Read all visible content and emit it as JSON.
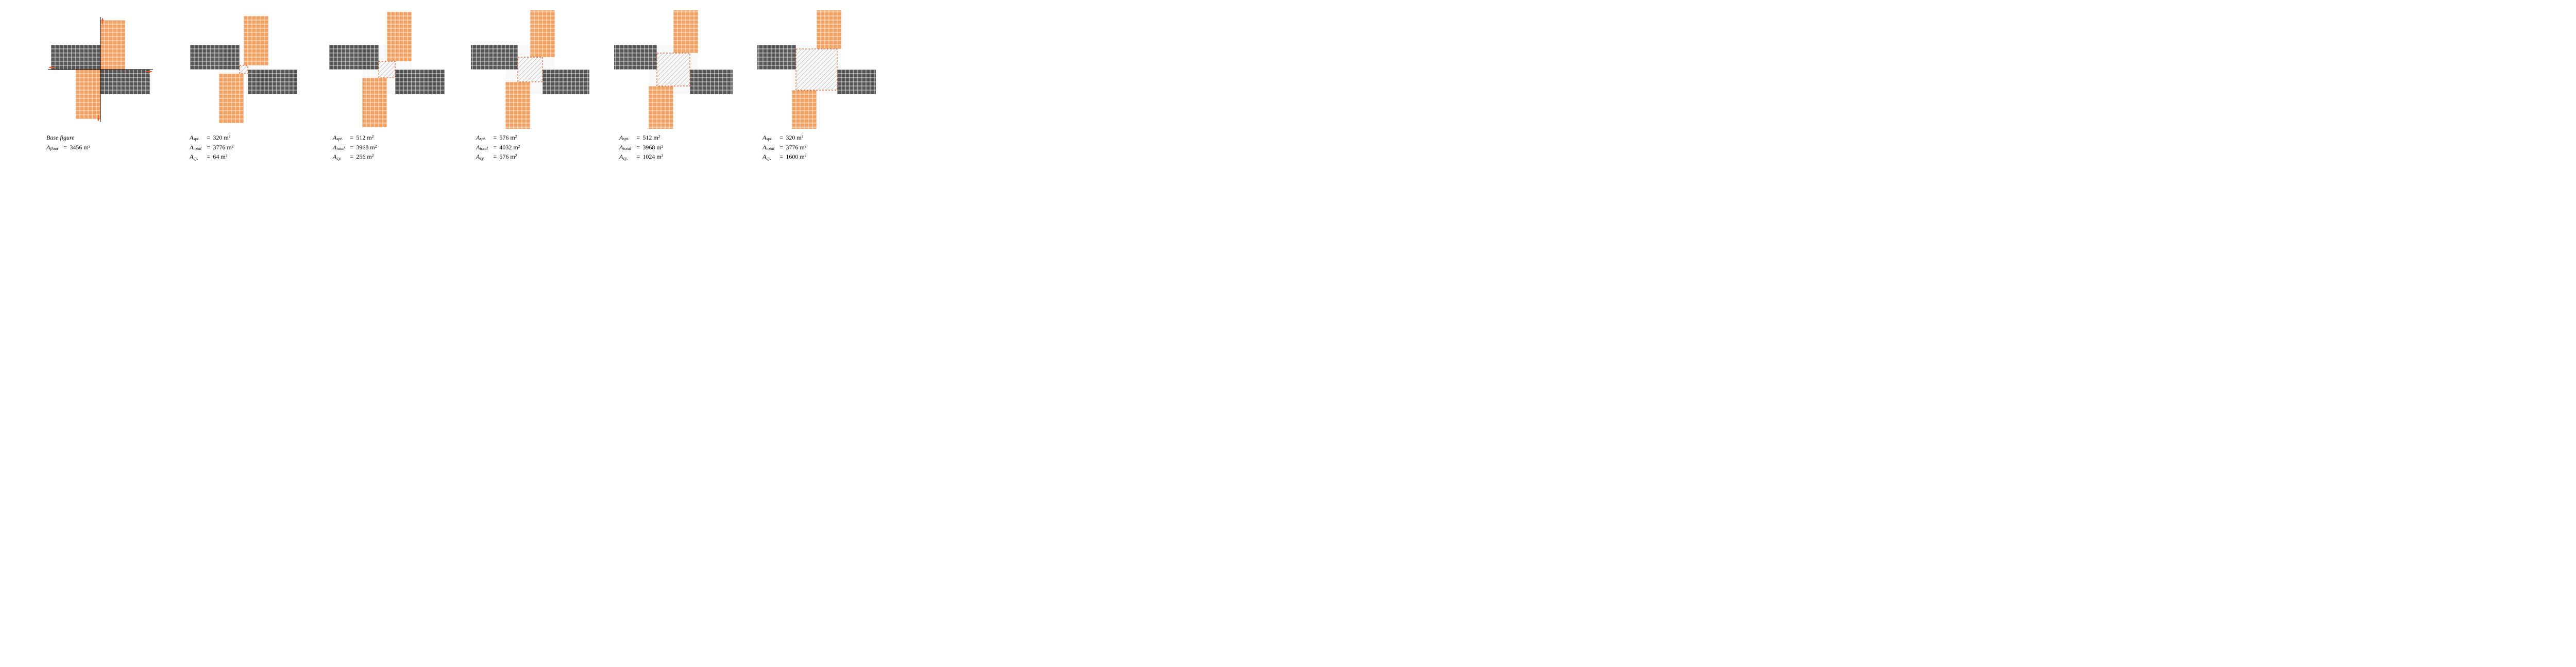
{
  "cell_size": 8,
  "colors": {
    "orange_fill": "#f4a261",
    "orange_stroke": "#ffffff",
    "gray_fill": "#555555",
    "gray_stroke": "#ffffff",
    "courtyard_stroke": "#e85d2b",
    "courtyard_dash": "3,3",
    "hatch_stroke": "#9b9b9b",
    "lightgray_fill": "#f8f8f8",
    "axis_stroke": "#000000",
    "arrow_fill": "#ff5722",
    "background": "#ffffff"
  },
  "wings": {
    "cols": 12,
    "rows": 6
  },
  "panels": [
    {
      "id": "p0",
      "is_base": true,
      "shift": 0,
      "base_label": "Base figure",
      "metrics": [
        {
          "sym": "A",
          "sub": "floor",
          "val": "3456 m²"
        }
      ]
    },
    {
      "id": "p1",
      "shift": 1,
      "metrics": [
        {
          "sym": "A",
          "sub": "spt.",
          "val": "320 m²"
        },
        {
          "sym": "A",
          "sub": "total",
          "val": "3776 m²"
        },
        {
          "sym": "A",
          "sub": "cy.",
          "val": "64 m²"
        }
      ]
    },
    {
      "id": "p2",
      "shift": 2,
      "metrics": [
        {
          "sym": "A",
          "sub": "spt.",
          "val": "512 m²"
        },
        {
          "sym": "A",
          "sub": "total",
          "val": "3968 m²"
        },
        {
          "sym": "A",
          "sub": "cy.",
          "val": "256 m²"
        }
      ]
    },
    {
      "id": "p3",
      "shift": 3,
      "metrics": [
        {
          "sym": "A",
          "sub": "spt.",
          "val": "576 m²"
        },
        {
          "sym": "A",
          "sub": "total",
          "val": "4032 m²"
        },
        {
          "sym": "A",
          "sub": "cy.",
          "val": "576 m²"
        }
      ]
    },
    {
      "id": "p4",
      "shift": 4,
      "metrics": [
        {
          "sym": "A",
          "sub": "spt.",
          "val": "512 m²"
        },
        {
          "sym": "A",
          "sub": "total",
          "val": "3968 m²"
        },
        {
          "sym": "A",
          "sub": "cy.",
          "val": "1024 m²"
        }
      ]
    },
    {
      "id": "p5",
      "shift": 5,
      "metrics": [
        {
          "sym": "A",
          "sub": "spt.",
          "val": "320 m²"
        },
        {
          "sym": "A",
          "sub": "total",
          "val": "3776 m²"
        },
        {
          "sym": "A",
          "sub": "cy.",
          "val": "1600 m²"
        }
      ]
    }
  ]
}
